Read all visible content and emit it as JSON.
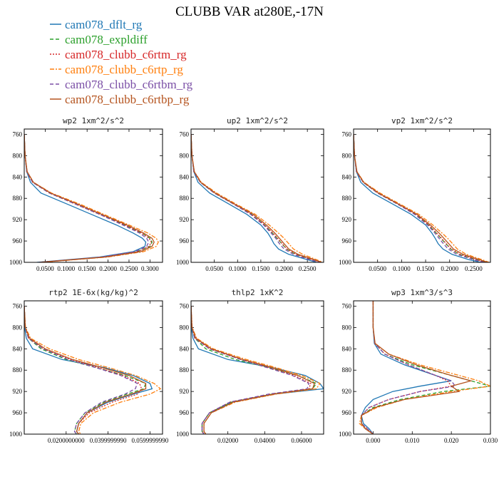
{
  "figure": {
    "title": "CLUBB VAR at280E,-17N"
  },
  "legend": [
    {
      "name": "cam078_dflt_rg",
      "color": "#1f77b4",
      "dash": "solid"
    },
    {
      "name": "cam078_expldiff",
      "color": "#2ca02c",
      "dash": "dash"
    },
    {
      "name": "cam078_clubb_c6rtm_rg",
      "color": "#d62728",
      "dash": "dot"
    },
    {
      "name": "cam078_clubb_c6rtp_rg",
      "color": "#ff7f0e",
      "dash": "dashdot"
    },
    {
      "name": "cam078_clubb_c6rtbm_rg",
      "color": "#7b4fa6",
      "dash": "dash"
    },
    {
      "name": "cam078_clubb_c6rtbp_rg",
      "color": "#b5541f",
      "dash": "solid"
    }
  ],
  "chart_data": [
    {
      "type": "line",
      "title": "wp2   1xm^2/s^2",
      "xlim": [
        0,
        0.33
      ],
      "ylim": [
        1000,
        750
      ],
      "xticks": [
        0.05,
        0.1,
        0.15,
        0.2,
        0.25,
        0.3
      ],
      "xtick_labels": [
        "0.0500",
        "0.1000",
        "0.1500",
        "0.2000",
        "0.2500",
        "0.3000"
      ],
      "yticks": [
        760,
        800,
        840,
        880,
        920,
        960,
        1000
      ],
      "ytick_labels": [
        "760",
        "800",
        "840",
        "880",
        "920",
        "960",
        "1000"
      ],
      "y": [
        760,
        800,
        830,
        850,
        870,
        890,
        910,
        930,
        945,
        955,
        962,
        970,
        980,
        990,
        1000
      ],
      "series": [
        {
          "name": "cam078_dflt_rg",
          "x": [
            0.0,
            0.002,
            0.006,
            0.015,
            0.04,
            0.1,
            0.16,
            0.22,
            0.26,
            0.282,
            0.29,
            0.288,
            0.26,
            0.18,
            0.03
          ]
        },
        {
          "name": "cam078_expldiff",
          "x": [
            0.0,
            0.002,
            0.006,
            0.02,
            0.06,
            0.12,
            0.18,
            0.24,
            0.28,
            0.3,
            0.305,
            0.3,
            0.27,
            0.19,
            0.035
          ]
        },
        {
          "name": "cam078_clubb_c6rtm_rg",
          "x": [
            0.0,
            0.002,
            0.006,
            0.02,
            0.06,
            0.12,
            0.18,
            0.24,
            0.28,
            0.298,
            0.303,
            0.298,
            0.27,
            0.19,
            0.035
          ]
        },
        {
          "name": "cam078_clubb_c6rtp_rg",
          "x": [
            0.0,
            0.002,
            0.007,
            0.022,
            0.065,
            0.13,
            0.19,
            0.25,
            0.295,
            0.315,
            0.32,
            0.315,
            0.285,
            0.2,
            0.04
          ]
        },
        {
          "name": "cam078_clubb_c6rtbm_rg",
          "x": [
            0.0,
            0.002,
            0.006,
            0.02,
            0.06,
            0.12,
            0.18,
            0.235,
            0.275,
            0.292,
            0.297,
            0.292,
            0.265,
            0.185,
            0.035
          ]
        },
        {
          "name": "cam078_clubb_c6rtbp_rg",
          "x": [
            0.0,
            0.002,
            0.007,
            0.022,
            0.063,
            0.125,
            0.185,
            0.245,
            0.285,
            0.305,
            0.31,
            0.305,
            0.278,
            0.195,
            0.038
          ]
        }
      ]
    },
    {
      "type": "line",
      "title": "up2   1xm^2/s^2",
      "xlim": [
        0,
        0.285
      ],
      "ylim": [
        1000,
        750
      ],
      "xticks": [
        0.05,
        0.1,
        0.15,
        0.2,
        0.25
      ],
      "xtick_labels": [
        "0.0500",
        "0.1000",
        "0.1500",
        "0.2000",
        "0.2500"
      ],
      "yticks": [
        760,
        800,
        840,
        880,
        920,
        960,
        1000
      ],
      "ytick_labels": [
        "760",
        "800",
        "840",
        "880",
        "920",
        "960",
        "1000"
      ],
      "y": [
        760,
        800,
        830,
        850,
        870,
        890,
        910,
        930,
        945,
        955,
        965,
        975,
        985,
        995,
        1000
      ],
      "series": [
        {
          "name": "cam078_dflt_rg",
          "x": [
            0.0,
            0.002,
            0.006,
            0.015,
            0.04,
            0.08,
            0.12,
            0.15,
            0.165,
            0.172,
            0.178,
            0.188,
            0.21,
            0.25,
            0.27
          ]
        },
        {
          "name": "cam078_expldiff",
          "x": [
            0.0,
            0.002,
            0.006,
            0.02,
            0.05,
            0.09,
            0.13,
            0.158,
            0.175,
            0.185,
            0.195,
            0.205,
            0.225,
            0.26,
            0.28
          ]
        },
        {
          "name": "cam078_clubb_c6rtm_rg",
          "x": [
            0.0,
            0.002,
            0.006,
            0.02,
            0.05,
            0.09,
            0.13,
            0.158,
            0.176,
            0.186,
            0.196,
            0.206,
            0.226,
            0.26,
            0.28
          ]
        },
        {
          "name": "cam078_clubb_c6rtp_rg",
          "x": [
            0.0,
            0.002,
            0.007,
            0.022,
            0.055,
            0.095,
            0.138,
            0.168,
            0.188,
            0.2,
            0.21,
            0.22,
            0.24,
            0.27,
            0.283
          ]
        },
        {
          "name": "cam078_clubb_c6rtbm_rg",
          "x": [
            0.0,
            0.002,
            0.006,
            0.02,
            0.05,
            0.09,
            0.128,
            0.156,
            0.172,
            0.182,
            0.19,
            0.2,
            0.22,
            0.255,
            0.278
          ]
        },
        {
          "name": "cam078_clubb_c6rtbp_rg",
          "x": [
            0.0,
            0.002,
            0.007,
            0.021,
            0.052,
            0.092,
            0.134,
            0.162,
            0.18,
            0.19,
            0.2,
            0.21,
            0.23,
            0.265,
            0.281
          ]
        }
      ]
    },
    {
      "type": "line",
      "title": "vp2   1xm^2/s^2",
      "xlim": [
        0,
        0.285
      ],
      "ylim": [
        1000,
        750
      ],
      "xticks": [
        0.05,
        0.1,
        0.15,
        0.2,
        0.25
      ],
      "xtick_labels": [
        "0.0500",
        "0.1000",
        "0.1500",
        "0.2000",
        "0.2500"
      ],
      "yticks": [
        760,
        800,
        840,
        880,
        920,
        960,
        1000
      ],
      "ytick_labels": [
        "760",
        "800",
        "840",
        "880",
        "920",
        "960",
        "1000"
      ],
      "y": [
        760,
        800,
        830,
        850,
        870,
        890,
        910,
        930,
        945,
        955,
        965,
        975,
        985,
        995,
        1000
      ],
      "series": [
        {
          "name": "cam078_dflt_rg",
          "x": [
            0.0,
            0.002,
            0.006,
            0.015,
            0.04,
            0.08,
            0.12,
            0.15,
            0.163,
            0.17,
            0.176,
            0.186,
            0.205,
            0.24,
            0.265
          ]
        },
        {
          "name": "cam078_expldiff",
          "x": [
            0.0,
            0.002,
            0.006,
            0.02,
            0.05,
            0.09,
            0.13,
            0.156,
            0.172,
            0.182,
            0.192,
            0.202,
            0.22,
            0.255,
            0.275
          ]
        },
        {
          "name": "cam078_clubb_c6rtm_rg",
          "x": [
            0.0,
            0.002,
            0.006,
            0.02,
            0.05,
            0.09,
            0.13,
            0.157,
            0.173,
            0.183,
            0.193,
            0.203,
            0.222,
            0.256,
            0.276
          ]
        },
        {
          "name": "cam078_clubb_c6rtp_rg",
          "x": [
            0.0,
            0.002,
            0.007,
            0.022,
            0.055,
            0.095,
            0.136,
            0.165,
            0.184,
            0.196,
            0.206,
            0.216,
            0.235,
            0.268,
            0.282
          ]
        },
        {
          "name": "cam078_clubb_c6rtbm_rg",
          "x": [
            0.0,
            0.002,
            0.006,
            0.02,
            0.05,
            0.09,
            0.127,
            0.154,
            0.169,
            0.178,
            0.187,
            0.197,
            0.215,
            0.25,
            0.272
          ]
        },
        {
          "name": "cam078_clubb_c6rtbp_rg",
          "x": [
            0.0,
            0.002,
            0.007,
            0.021,
            0.052,
            0.092,
            0.132,
            0.16,
            0.178,
            0.188,
            0.198,
            0.208,
            0.228,
            0.262,
            0.279
          ]
        }
      ]
    },
    {
      "type": "line",
      "title": "rtp2   1E-6x(kg/kg)^2",
      "xlim": [
        0,
        0.066
      ],
      "ylim": [
        1000,
        750
      ],
      "xticks": [
        0.02,
        0.04,
        0.06
      ],
      "xtick_labels": [
        "0.0200000000",
        "0.0399999990",
        "0.0599999990"
      ],
      "yticks": [
        760,
        800,
        840,
        880,
        920,
        960,
        1000
      ],
      "ytick_labels": [
        "760",
        "800",
        "840",
        "880",
        "920",
        "960",
        "1000"
      ],
      "y": [
        760,
        800,
        820,
        840,
        860,
        875,
        890,
        905,
        915,
        925,
        940,
        960,
        980,
        995,
        1000
      ],
      "series": [
        {
          "name": "cam078_dflt_rg",
          "x": [
            0.0,
            0.0002,
            0.001,
            0.004,
            0.018,
            0.038,
            0.052,
            0.06,
            0.061,
            0.052,
            0.04,
            0.03,
            0.026,
            0.025,
            0.026
          ]
        },
        {
          "name": "cam078_expldiff",
          "x": [
            0.0,
            0.0005,
            0.002,
            0.008,
            0.02,
            0.034,
            0.048,
            0.058,
            0.057,
            0.049,
            0.038,
            0.029,
            0.025,
            0.024,
            0.025
          ]
        },
        {
          "name": "cam078_clubb_c6rtm_rg",
          "x": [
            0.0,
            0.0005,
            0.002,
            0.009,
            0.022,
            0.035,
            0.047,
            0.055,
            0.056,
            0.054,
            0.042,
            0.031,
            0.026,
            0.025,
            0.026
          ]
        },
        {
          "name": "cam078_clubb_c6rtp_rg",
          "x": [
            0.0,
            0.0006,
            0.003,
            0.012,
            0.026,
            0.04,
            0.053,
            0.062,
            0.065,
            0.06,
            0.046,
            0.033,
            0.027,
            0.026,
            0.027
          ]
        },
        {
          "name": "cam078_clubb_c6rtbm_rg",
          "x": [
            0.0,
            0.0005,
            0.002,
            0.009,
            0.021,
            0.034,
            0.046,
            0.054,
            0.053,
            0.048,
            0.037,
            0.029,
            0.025,
            0.024,
            0.025
          ]
        },
        {
          "name": "cam078_clubb_c6rtbp_rg",
          "x": [
            0.0,
            0.0005,
            0.0025,
            0.01,
            0.023,
            0.037,
            0.05,
            0.058,
            0.058,
            0.051,
            0.039,
            0.03,
            0.026,
            0.025,
            0.026
          ]
        }
      ]
    },
    {
      "type": "line",
      "title": "thlp2   1xK^2",
      "xlim": [
        0,
        0.072
      ],
      "ylim": [
        1000,
        750
      ],
      "xticks": [
        0.02,
        0.04,
        0.06
      ],
      "xtick_labels": [
        "0.02000",
        "0.04000",
        "0.06000"
      ],
      "yticks": [
        760,
        800,
        840,
        880,
        920,
        960,
        1000
      ],
      "ytick_labels": [
        "760",
        "800",
        "840",
        "880",
        "920",
        "960",
        "1000"
      ],
      "y": [
        760,
        800,
        820,
        840,
        860,
        875,
        890,
        905,
        915,
        925,
        940,
        960,
        980,
        995,
        1000
      ],
      "series": [
        {
          "name": "cam078_dflt_rg",
          "x": [
            0.0,
            0.0002,
            0.001,
            0.004,
            0.02,
            0.044,
            0.062,
            0.07,
            0.072,
            0.045,
            0.022,
            0.01,
            0.006,
            0.006,
            0.007
          ]
        },
        {
          "name": "cam078_expldiff",
          "x": [
            0.0,
            0.0004,
            0.002,
            0.008,
            0.024,
            0.042,
            0.058,
            0.068,
            0.066,
            0.044,
            0.022,
            0.01,
            0.006,
            0.006,
            0.007
          ]
        },
        {
          "name": "cam078_clubb_c6rtm_rg",
          "x": [
            0.0,
            0.0005,
            0.002,
            0.01,
            0.027,
            0.042,
            0.056,
            0.065,
            0.064,
            0.043,
            0.021,
            0.01,
            0.006,
            0.006,
            0.007
          ]
        },
        {
          "name": "cam078_clubb_c6rtp_rg",
          "x": [
            0.0,
            0.0006,
            0.003,
            0.012,
            0.03,
            0.046,
            0.06,
            0.07,
            0.068,
            0.046,
            0.024,
            0.011,
            0.007,
            0.007,
            0.008
          ]
        },
        {
          "name": "cam078_clubb_c6rtbm_rg",
          "x": [
            0.0,
            0.0005,
            0.002,
            0.01,
            0.027,
            0.041,
            0.055,
            0.064,
            0.063,
            0.042,
            0.021,
            0.01,
            0.006,
            0.006,
            0.007
          ]
        },
        {
          "name": "cam078_clubb_c6rtbp_rg",
          "x": [
            0.0,
            0.0005,
            0.0025,
            0.011,
            0.028,
            0.044,
            0.058,
            0.067,
            0.066,
            0.045,
            0.023,
            0.011,
            0.007,
            0.007,
            0.008
          ]
        }
      ]
    },
    {
      "type": "line",
      "title": "wp3   1xm^3/s^3",
      "xlim": [
        -0.005,
        0.03
      ],
      "ylim": [
        1000,
        750
      ],
      "xticks": [
        0.0,
        0.01,
        0.02,
        0.03
      ],
      "xtick_labels": [
        "0.000",
        "0.010",
        "0.020",
        "0.030"
      ],
      "yticks": [
        760,
        800,
        840,
        880,
        920,
        960,
        1000
      ],
      "ytick_labels": [
        "760",
        "800",
        "840",
        "880",
        "920",
        "960",
        "1000"
      ],
      "y": [
        750,
        800,
        830,
        850,
        870,
        890,
        900,
        910,
        920,
        935,
        950,
        965,
        980,
        990,
        1000
      ],
      "series": [
        {
          "name": "cam078_dflt_rg",
          "x": [
            0.0,
            0.0,
            0.0003,
            0.002,
            0.008,
            0.016,
            0.02,
            0.012,
            0.005,
            0.0,
            -0.002,
            -0.003,
            -0.0025,
            -0.001,
            0.0
          ]
        },
        {
          "name": "cam078_expldiff",
          "x": [
            0.0,
            0.0,
            0.0004,
            0.003,
            0.01,
            0.02,
            0.025,
            0.03,
            0.018,
            0.007,
            0.0,
            -0.003,
            -0.003,
            -0.002,
            0.0
          ]
        },
        {
          "name": "cam078_clubb_c6rtm_rg",
          "x": [
            0.0,
            0.0,
            0.0004,
            0.003,
            0.009,
            0.016,
            0.019,
            0.02,
            0.012,
            0.004,
            -0.001,
            -0.003,
            -0.003,
            -0.0015,
            0.0
          ]
        },
        {
          "name": "cam078_clubb_c6rtp_rg",
          "x": [
            0.0,
            0.0,
            0.0005,
            0.004,
            0.012,
            0.022,
            0.027,
            0.03,
            0.02,
            0.008,
            0.001,
            -0.003,
            -0.0035,
            -0.002,
            0.0
          ]
        },
        {
          "name": "cam078_clubb_c6rtbm_rg",
          "x": [
            0.0,
            0.0,
            0.0004,
            0.003,
            0.009,
            0.016,
            0.02,
            0.021,
            0.012,
            0.004,
            -0.001,
            -0.003,
            -0.003,
            -0.0015,
            0.0
          ]
        },
        {
          "name": "cam078_clubb_c6rtbp_rg",
          "x": [
            0.0,
            0.0,
            0.0005,
            0.004,
            0.011,
            0.02,
            0.025,
            0.02,
            0.022,
            0.008,
            0.0005,
            -0.003,
            -0.003,
            -0.002,
            0.0
          ]
        }
      ]
    }
  ]
}
